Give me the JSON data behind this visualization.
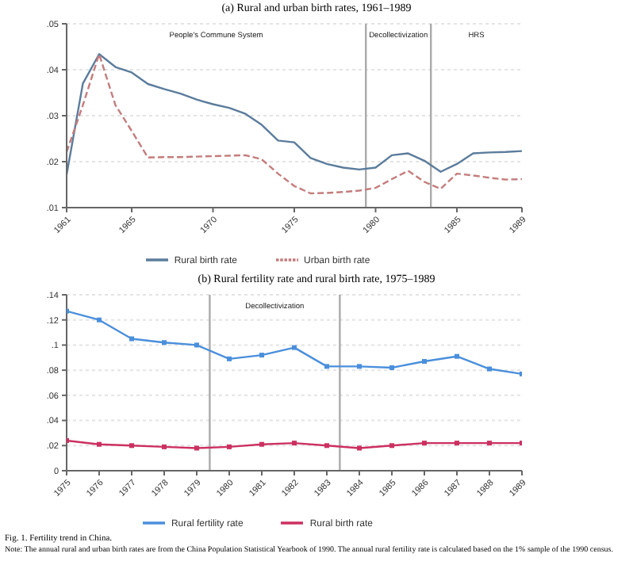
{
  "chart_data": [
    {
      "type": "line",
      "title": "(a) Rural and urban birth rates, 1961–1989",
      "x": [
        1961,
        1962,
        1963,
        1964,
        1965,
        1966,
        1967,
        1968,
        1969,
        1970,
        1971,
        1972,
        1973,
        1974,
        1975,
        1976,
        1977,
        1978,
        1979,
        1980,
        1981,
        1982,
        1983,
        1984,
        1985,
        1986,
        1987,
        1988,
        1989
      ],
      "series": [
        {
          "name": "Rural birth rate",
          "color": "#5b7c9c",
          "line_style": "solid",
          "values": [
            0.0172,
            0.037,
            0.0434,
            0.0406,
            0.0394,
            0.0369,
            0.0358,
            0.0348,
            0.0335,
            0.0325,
            0.0317,
            0.0304,
            0.028,
            0.0246,
            0.0242,
            0.0208,
            0.0195,
            0.0187,
            0.0183,
            0.0187,
            0.0214,
            0.0218,
            0.0202,
            0.0178,
            0.0195,
            0.0218,
            0.022,
            0.0221,
            0.0223
          ]
        },
        {
          "name": "Urban birth rate",
          "color": "#c47c7c",
          "line_style": "dashed",
          "values": [
            0.0221,
            0.0323,
            0.0434,
            0.0323,
            0.0267,
            0.0209,
            0.021,
            0.021,
            0.0211,
            0.0212,
            0.0213,
            0.0214,
            0.0205,
            0.0174,
            0.0147,
            0.0131,
            0.0132,
            0.0134,
            0.0137,
            0.0143,
            0.0162,
            0.018,
            0.0156,
            0.0141,
            0.0174,
            0.017,
            0.0165,
            0.0161,
            0.0162
          ]
        }
      ],
      "xlim": [
        1961,
        1989
      ],
      "xticks": [
        1961,
        1965,
        1970,
        1975,
        1980,
        1985,
        1989
      ],
      "ylim": [
        0.01,
        0.05
      ],
      "yticks": [
        {
          "value": 0.01,
          "label": ".01"
        },
        {
          "value": 0.02,
          "label": ".02"
        },
        {
          "value": 0.03,
          "label": ".03"
        },
        {
          "value": 0.04,
          "label": ".04"
        },
        {
          "value": 0.05,
          "label": ".05"
        }
      ],
      "grid": "y",
      "legend": "bottom",
      "marker": "none",
      "ref_lines": [
        {
          "axis": "x",
          "value": 1979.4,
          "color": "#aaaaaa"
        },
        {
          "axis": "x",
          "value": 1983.4,
          "color": "#aaaaaa"
        }
      ],
      "annotations": [
        "People's Commune System",
        "Decollectivization",
        "HRS"
      ]
    },
    {
      "type": "line",
      "title": "(b) Rural fertility rate and rural birth rate, 1975–1989",
      "x": [
        1975,
        1976,
        1977,
        1978,
        1979,
        1980,
        1981,
        1982,
        1983,
        1984,
        1985,
        1986,
        1987,
        1988,
        1989
      ],
      "series": [
        {
          "name": "Rural fertility rate",
          "color": "#4a8fdc",
          "line_style": "solid",
          "values": [
            0.127,
            0.12,
            0.105,
            0.102,
            0.1,
            0.089,
            0.092,
            0.098,
            0.083,
            0.083,
            0.082,
            0.087,
            0.091,
            0.081,
            0.077
          ]
        },
        {
          "name": "Rural birth rate",
          "color": "#cc3060",
          "line_style": "solid",
          "values": [
            0.024,
            0.021,
            0.02,
            0.019,
            0.018,
            0.019,
            0.021,
            0.022,
            0.02,
            0.018,
            0.02,
            0.022,
            0.022,
            0.022,
            0.022
          ]
        }
      ],
      "xlim": [
        1975,
        1989
      ],
      "xticks": [
        1975,
        1976,
        1977,
        1978,
        1979,
        1980,
        1981,
        1982,
        1983,
        1984,
        1985,
        1986,
        1987,
        1988,
        1989
      ],
      "ylim": [
        0,
        0.14
      ],
      "yticks": [
        0,
        {
          "value": 0.02,
          "label": ".02"
        },
        {
          "value": 0.04,
          "label": ".04"
        },
        {
          "value": 0.06,
          "label": ".06"
        },
        {
          "value": 0.08,
          "label": ".08"
        },
        {
          "value": 0.1,
          "label": ".1"
        },
        {
          "value": 0.12,
          "label": ".12"
        },
        {
          "value": 0.14,
          "label": ".14"
        }
      ],
      "grid": "y",
      "legend": "bottom",
      "marker": "square",
      "ref_lines": [
        {
          "axis": "x",
          "value": 1979.4,
          "color": "#aaaaaa"
        },
        {
          "axis": "x",
          "value": 1983.4,
          "color": "#aaaaaa"
        }
      ],
      "annotations": [
        "Decollectivization"
      ]
    },
    {
      "type": "other",
      "title": "Fig. 1. Fertility trend in China.",
      "annotations": [
        "Note: The annual rural and urban birth rates are from the China Population Statistical Yearbook of 1990. The annual rural fertility rate is calculated based on the 1% sample of the 1990 census."
      ]
    }
  ]
}
